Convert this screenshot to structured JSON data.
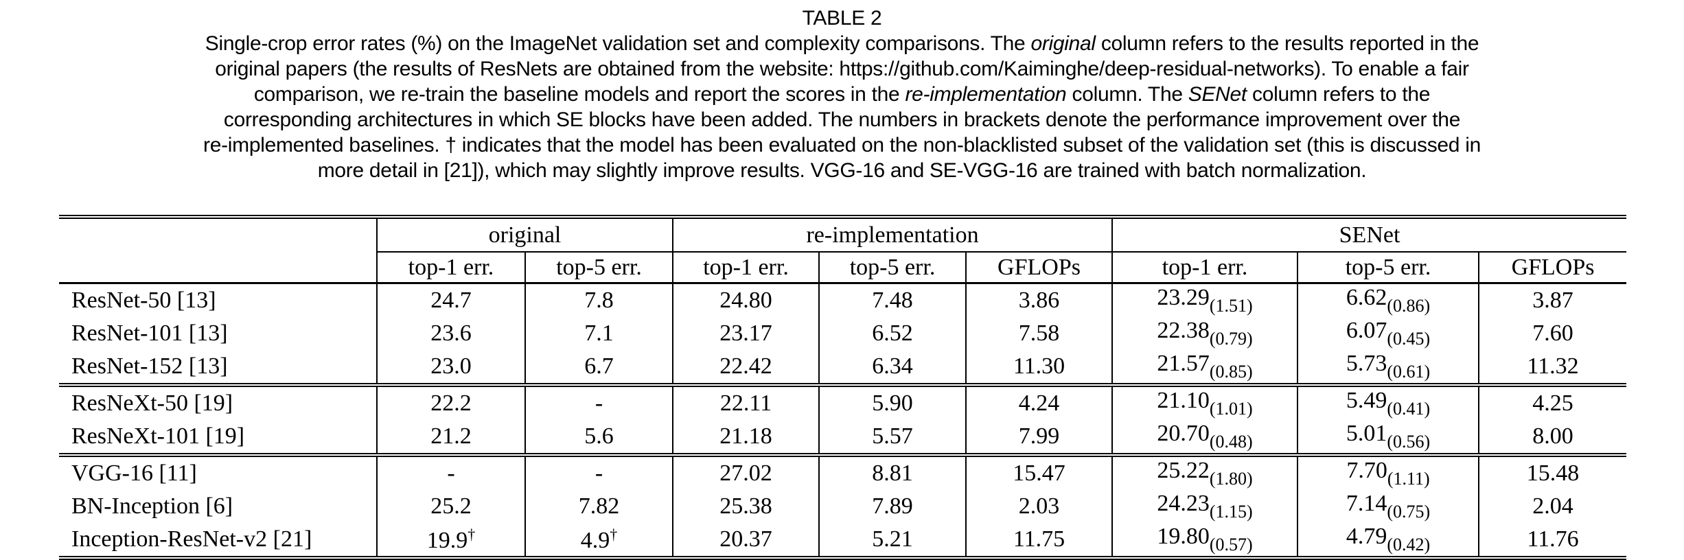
{
  "colors": {
    "background": "#ffffff",
    "text": "#000000",
    "rule": "#000000"
  },
  "caption": {
    "title": "TABLE 2",
    "lines": [
      [
        {
          "t": "Single-crop error rates (%) on the ImageNet validation set and complexity comparisons. The "
        },
        {
          "t": "original",
          "i": true
        },
        {
          "t": " column refers to the results reported in the"
        }
      ],
      [
        {
          "t": "original papers (the results of ResNets are obtained from the website: https://github.com/Kaiminghe/deep-residual-networks). To enable a fair"
        }
      ],
      [
        {
          "t": "comparison, we re-train the baseline models and report the scores in the "
        },
        {
          "t": "re-implementation",
          "i": true
        },
        {
          "t": " column. The "
        },
        {
          "t": "SENet",
          "i": true
        },
        {
          "t": " column refers to the"
        }
      ],
      [
        {
          "t": "corresponding architectures in which SE blocks have been added. The numbers in brackets denote the performance improvement over the"
        }
      ],
      [
        {
          "t": "re-implemented baselines. † indicates that the model has been evaluated on the non-blacklisted subset of the validation set (this is discussed in"
        }
      ],
      [
        {
          "t": "more detail in [21]), which may slightly improve results. VGG-16 and SE-VGG-16 are trained with batch normalization."
        }
      ]
    ]
  },
  "table": {
    "group_headers": [
      {
        "label": "",
        "span": 1
      },
      {
        "label": "original",
        "span": 2
      },
      {
        "label": "re-implementation",
        "span": 3
      },
      {
        "label": "SENet",
        "span": 3
      }
    ],
    "col_headers": [
      "",
      "top-1 err.",
      "top-5 err.",
      "top-1 err.",
      "top-5 err.",
      "GFLOPs",
      "top-1 err.",
      "top-5 err.",
      "GFLOPs"
    ],
    "groups": [
      {
        "rows": [
          {
            "model": "ResNet-50 [13]",
            "cells": [
              "24.7",
              "7.8",
              "24.80",
              "7.48",
              "3.86",
              {
                "v": "23.29",
                "sub": "(1.51)"
              },
              {
                "v": "6.62",
                "sub": "(0.86)"
              },
              "3.87"
            ]
          },
          {
            "model": "ResNet-101 [13]",
            "cells": [
              "23.6",
              "7.1",
              "23.17",
              "6.52",
              "7.58",
              {
                "v": "22.38",
                "sub": "(0.79)"
              },
              {
                "v": "6.07",
                "sub": "(0.45)"
              },
              "7.60"
            ]
          },
          {
            "model": "ResNet-152 [13]",
            "cells": [
              "23.0",
              "6.7",
              "22.42",
              "6.34",
              "11.30",
              {
                "v": "21.57",
                "sub": "(0.85)"
              },
              {
                "v": "5.73",
                "sub": "(0.61)"
              },
              "11.32"
            ]
          }
        ]
      },
      {
        "rows": [
          {
            "model": "ResNeXt-50 [19]",
            "cells": [
              "22.2",
              "-",
              "22.11",
              "5.90",
              "4.24",
              {
                "v": "21.10",
                "sub": "(1.01)"
              },
              {
                "v": "5.49",
                "sub": "(0.41)"
              },
              "4.25"
            ]
          },
          {
            "model": "ResNeXt-101 [19]",
            "cells": [
              "21.2",
              "5.6",
              "21.18",
              "5.57",
              "7.99",
              {
                "v": "20.70",
                "sub": "(0.48)"
              },
              {
                "v": "5.01",
                "sub": "(0.56)"
              },
              "8.00"
            ]
          }
        ]
      },
      {
        "rows": [
          {
            "model": "VGG-16 [11]",
            "cells": [
              "-",
              "-",
              "27.02",
              "8.81",
              "15.47",
              {
                "v": "25.22",
                "sub": "(1.80)"
              },
              {
                "v": "7.70",
                "sub": "(1.11)"
              },
              "15.48"
            ]
          },
          {
            "model": "BN-Inception [6]",
            "cells": [
              "25.2",
              "7.82",
              "25.38",
              "7.89",
              "2.03",
              {
                "v": "24.23",
                "sub": "(1.15)"
              },
              {
                "v": "7.14",
                "sub": "(0.75)"
              },
              "2.04"
            ]
          },
          {
            "model": "Inception-ResNet-v2 [21]",
            "cells": [
              {
                "v": "19.9",
                "sup": "†"
              },
              {
                "v": "4.9",
                "sup": "†"
              },
              "20.37",
              "5.21",
              "11.75",
              {
                "v": "19.80",
                "sub": "(0.57)"
              },
              {
                "v": "4.79",
                "sub": "(0.42)"
              },
              "11.76"
            ]
          }
        ]
      }
    ]
  }
}
